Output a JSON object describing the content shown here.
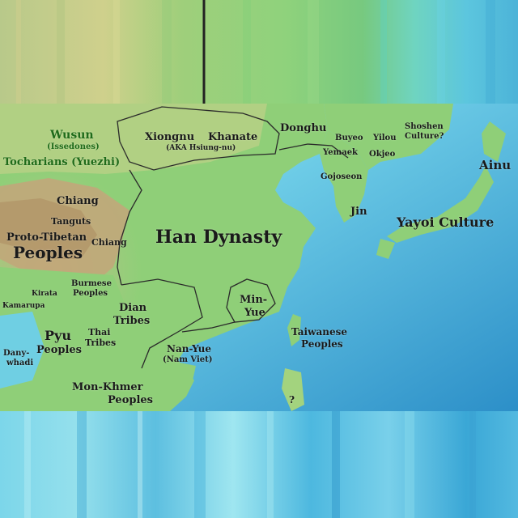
{
  "colors": {
    "land_low": "#7ec97a",
    "land_mid": "#a7cc7e",
    "land_high": "#c6ae7f",
    "mountain": "#b99a6d",
    "shallow_sea": "#a8ecf2",
    "sea": "#5cbede",
    "deep_sea": "#2c8fc8",
    "label_dark": "#1a1a1a",
    "label_green": "#1f6b1a"
  },
  "labels": {
    "wusun": "Wusun",
    "issedones": "(Issedones)",
    "tocharians": "Tocharians (Yuezhi)",
    "xiongnu": "Xiongnu",
    "khanate": "Khanate",
    "aka": "(AKA Hsiung-nu)",
    "donghu": "Donghu",
    "buyeo": "Buyeo",
    "yilou": "Yilou",
    "shoshen": "Shoshen",
    "culture_q": "Culture?",
    "yemaek": "Yemaek",
    "okjeo": "Okjeo",
    "ainu": "Ainu",
    "gojoseon": "Gojoseon",
    "chiang_top": "Chiang",
    "tanguts": "Tanguts",
    "proto_tibetan": "Proto-Tibetan",
    "chiang_mid": "Chiang",
    "peoples_tibet": "Peoples",
    "han_dynasty": "Han Dynasty",
    "jin": "Jin",
    "yayoi": "Yayoi Culture",
    "burmese": "Burmese",
    "burmese_peoples": "Peoples",
    "kirata": "Kirata",
    "kamarupa": "Kamarupa",
    "dian": "Dian",
    "dian_tribes": "Tribes",
    "min": "Min-",
    "yue": "Yue",
    "pyu": "Pyu",
    "pyu_peoples": "Peoples",
    "thai": "Thai",
    "thai_tribes": "Tribes",
    "taiwanese": "Taiwanese",
    "taiwanese_peoples": "Peoples",
    "danywhadi_1": "Dany-",
    "danywhadi_2": "whadi",
    "nanyue": "Nan-Yue",
    "nam_viet": "(Nam Viet)",
    "mon_khmer": "Mon-Khmer",
    "mon_khmer_peoples": "Peoples",
    "question": "?"
  }
}
